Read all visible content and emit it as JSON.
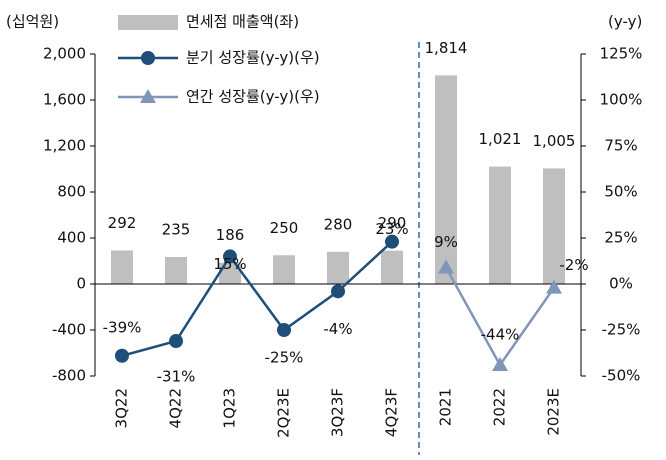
{
  "chart_data": {
    "type": "bar_line",
    "y_label": "(십억원)",
    "y2_label": "(y-y)",
    "categories": [
      "3Q22",
      "4Q22",
      "1Q23",
      "2Q23E",
      "3Q23F",
      "4Q23F",
      "2021",
      "2022",
      "2023E"
    ],
    "series": [
      {
        "name": "면세점 매출액(좌)",
        "type": "bar",
        "color": "#bfbfbf",
        "values": [
          292,
          235,
          186,
          250,
          280,
          290,
          1814,
          1021,
          1005
        ],
        "value_labels": [
          "292",
          "235",
          "186",
          "250",
          "280",
          "290",
          "1,814",
          "1,021",
          "1,005"
        ]
      },
      {
        "name": "분기 성장률(y-y)(우)",
        "type": "line",
        "axis": "y2",
        "color": "#1f4e79",
        "marker": "circle",
        "values": [
          -39,
          -31,
          15,
          -25,
          -4,
          23,
          null,
          null,
          null
        ],
        "value_labels": [
          "-39%",
          "-31%",
          "15%",
          "-25%",
          "-4%",
          "23%",
          null,
          null,
          null
        ]
      },
      {
        "name": "연간 성장률(y-y)(우)",
        "type": "line",
        "axis": "y2",
        "color": "#8096b8",
        "marker": "triangle",
        "values": [
          null,
          null,
          null,
          null,
          null,
          null,
          9,
          -44,
          -2
        ],
        "value_labels": [
          null,
          null,
          null,
          null,
          null,
          null,
          "9%",
          "-44%",
          "-2%"
        ]
      }
    ],
    "ylim": [
      -800,
      2000
    ],
    "yticks": [
      -800,
      -400,
      0,
      400,
      800,
      {
        "value": 1200,
        "label": "1,200"
      },
      {
        "value": 1600,
        "label": "1,600"
      },
      {
        "value": 2000,
        "label": "2,000"
      }
    ],
    "y2lim": [
      -50,
      125
    ],
    "y2ticks": [
      {
        "value": -50,
        "label": "-50%"
      },
      {
        "value": -25,
        "label": "-25%"
      },
      {
        "value": 0,
        "label": "0%"
      },
      {
        "value": 25,
        "label": "25%"
      },
      {
        "value": 50,
        "label": "50%"
      },
      {
        "value": 75,
        "label": "75%"
      },
      {
        "value": 100,
        "label": "100%"
      },
      {
        "value": 125,
        "label": "125%"
      }
    ]
  }
}
